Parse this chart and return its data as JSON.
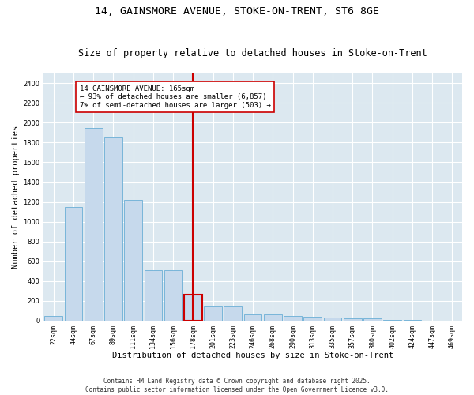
{
  "title1": "14, GAINSMORE AVENUE, STOKE-ON-TRENT, ST6 8GE",
  "title2": "Size of property relative to detached houses in Stoke-on-Trent",
  "xlabel": "Distribution of detached houses by size in Stoke-on-Trent",
  "ylabel": "Number of detached properties",
  "categories": [
    "22sqm",
    "44sqm",
    "67sqm",
    "89sqm",
    "111sqm",
    "134sqm",
    "156sqm",
    "178sqm",
    "201sqm",
    "223sqm",
    "246sqm",
    "268sqm",
    "290sqm",
    "313sqm",
    "335sqm",
    "357sqm",
    "380sqm",
    "402sqm",
    "424sqm",
    "447sqm",
    "469sqm"
  ],
  "values": [
    50,
    1150,
    1950,
    1850,
    1220,
    510,
    510,
    260,
    155,
    155,
    60,
    60,
    50,
    40,
    30,
    20,
    20,
    10,
    5,
    3,
    2
  ],
  "bar_color": "#c6d9ec",
  "bar_edge_color": "#6aaed6",
  "highlight_bar_index": 7,
  "highlight_color": "#cc0000",
  "annotation_text": "14 GAINSMORE AVENUE: 165sqm\n← 93% of detached houses are smaller (6,857)\n7% of semi-detached houses are larger (503) →",
  "annotation_box_color": "#cc0000",
  "ylim": [
    0,
    2500
  ],
  "yticks": [
    0,
    200,
    400,
    600,
    800,
    1000,
    1200,
    1400,
    1600,
    1800,
    2000,
    2200,
    2400
  ],
  "background_color": "#dce8f0",
  "footer_text": "Contains HM Land Registry data © Crown copyright and database right 2025.\nContains public sector information licensed under the Open Government Licence v3.0.",
  "title1_fontsize": 9.5,
  "title2_fontsize": 8.5,
  "annotation_fontsize": 6.5,
  "tick_fontsize": 6,
  "label_fontsize": 7.5,
  "footer_fontsize": 5.5
}
